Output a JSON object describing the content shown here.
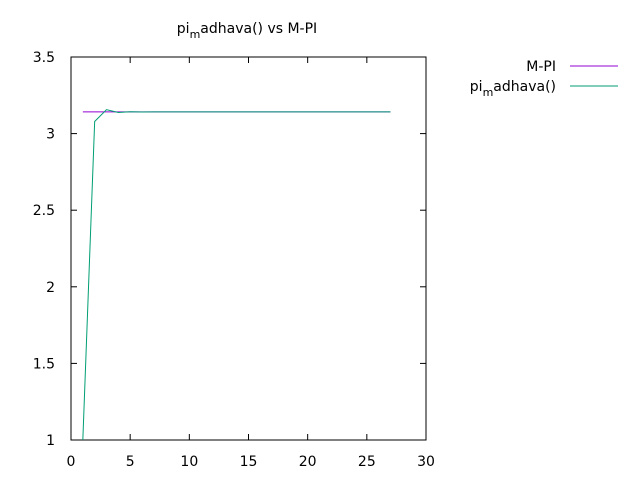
{
  "chart_data": {
    "type": "line",
    "title": {
      "prefix": "pi",
      "subscript": "m",
      "suffix": "adhava() vs M-PI"
    },
    "xlabel": "",
    "ylabel": "",
    "xlim": [
      0,
      30
    ],
    "ylim": [
      1,
      3.5
    ],
    "x_ticks": [
      0,
      5,
      10,
      15,
      20,
      25,
      30
    ],
    "y_ticks": [
      1,
      1.5,
      2,
      2.5,
      3,
      3.5
    ],
    "x_tick_labels": [
      "0",
      "5",
      "10",
      "15",
      "20",
      "25",
      "30"
    ],
    "y_tick_labels": [
      "1",
      "1.5",
      "2",
      "2.5",
      "3",
      "3.5"
    ],
    "grid": false,
    "legend_position": "outside-top-right",
    "series": [
      {
        "name": "M-PI",
        "label": {
          "prefix": "M-PI",
          "subscript": "",
          "suffix": ""
        },
        "color": "#9400d3",
        "x": [
          1,
          27
        ],
        "y": [
          3.14159,
          3.14159
        ]
      },
      {
        "name": "pi_madhava()",
        "label": {
          "prefix": "pi",
          "subscript": "m",
          "suffix": "adhava()"
        },
        "color": "#009e73",
        "x": [
          1,
          2,
          3,
          4,
          5,
          6,
          7,
          8,
          9,
          10,
          11,
          12,
          13,
          14,
          15,
          16,
          17,
          18,
          19,
          20,
          21,
          22,
          23,
          24,
          25,
          26,
          27
        ],
        "y": [
          1.0,
          3.0792,
          3.1561,
          3.1379,
          3.1424,
          3.1413,
          3.1416,
          3.1416,
          3.1416,
          3.1416,
          3.1416,
          3.1416,
          3.1416,
          3.1416,
          3.1416,
          3.1416,
          3.1416,
          3.1416,
          3.1416,
          3.1416,
          3.1416,
          3.1416,
          3.1416,
          3.1416,
          3.1416,
          3.1416,
          3.1416
        ]
      }
    ]
  }
}
